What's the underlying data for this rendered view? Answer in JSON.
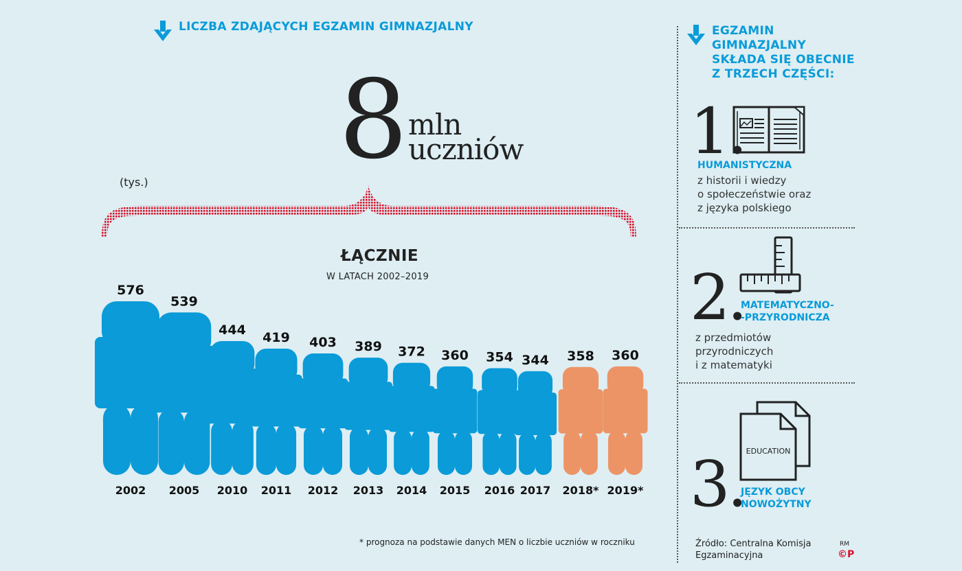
{
  "header": {
    "chart_title": "LICZBA  ZDAJĄCYCH  EGZAMIN GIMNAZJALNY",
    "total_value": "8",
    "total_unit_1": "mln",
    "total_unit_2": "uczniów",
    "unit_label": "(tys.)",
    "total_label": "ŁĄCZNIE",
    "total_sublabel": "W LATACH 2002–2019"
  },
  "colors": {
    "actual": "#0a9bd8",
    "forecast": "#ec9466",
    "accent": "#0a9bd8",
    "brace": "#d8112b"
  },
  "chart_data": {
    "type": "bar",
    "title": "LICZBA  ZDAJĄCYCH  EGZAMIN GIMNAZJALNY",
    "unit": "(tys.)",
    "categories": [
      "2002",
      "2005",
      "2010",
      "2011",
      "2012",
      "2013",
      "2014",
      "2015",
      "2016",
      "2017",
      "2018*",
      "2019*"
    ],
    "values": [
      576,
      539,
      444,
      419,
      403,
      389,
      372,
      360,
      354,
      344,
      358,
      360
    ],
    "forecast": [
      false,
      false,
      false,
      false,
      false,
      false,
      false,
      false,
      false,
      false,
      true,
      true
    ],
    "total": "8 mln uczniów",
    "note": "* prognoza na podstawie danych MEN o liczbie uczniów w roczniku"
  },
  "sidebar": {
    "title": "EGZAMIN\nGIMNAZJALNY\nSKŁADA SIĘ OBECNIE\nZ TRZECH CZĘŚCI:",
    "parts": [
      {
        "number": "1.",
        "title": "HUMANISTYCZNA",
        "desc": "z historii i wiedzy\no społeczeństwie oraz\nz języka polskiego",
        "icon": "book-icon"
      },
      {
        "number": "2.",
        "title": "MATEMATYCZNO-\n-PRZYRODNICZA",
        "desc": "z przedmiotów\nprzyrodniczych\ni z matematyki",
        "icon": "ruler-icon"
      },
      {
        "number": "3.",
        "title": "JĘZYK OBCY\nNOWOŻYTNY",
        "desc": "",
        "icon": "documents-icon",
        "icon_text": "EDUCATION"
      }
    ],
    "source": "Źródło: Centralna Komisja\nEgzaminacyjna",
    "logo_text": "RM",
    "logo_mark": "©P"
  }
}
